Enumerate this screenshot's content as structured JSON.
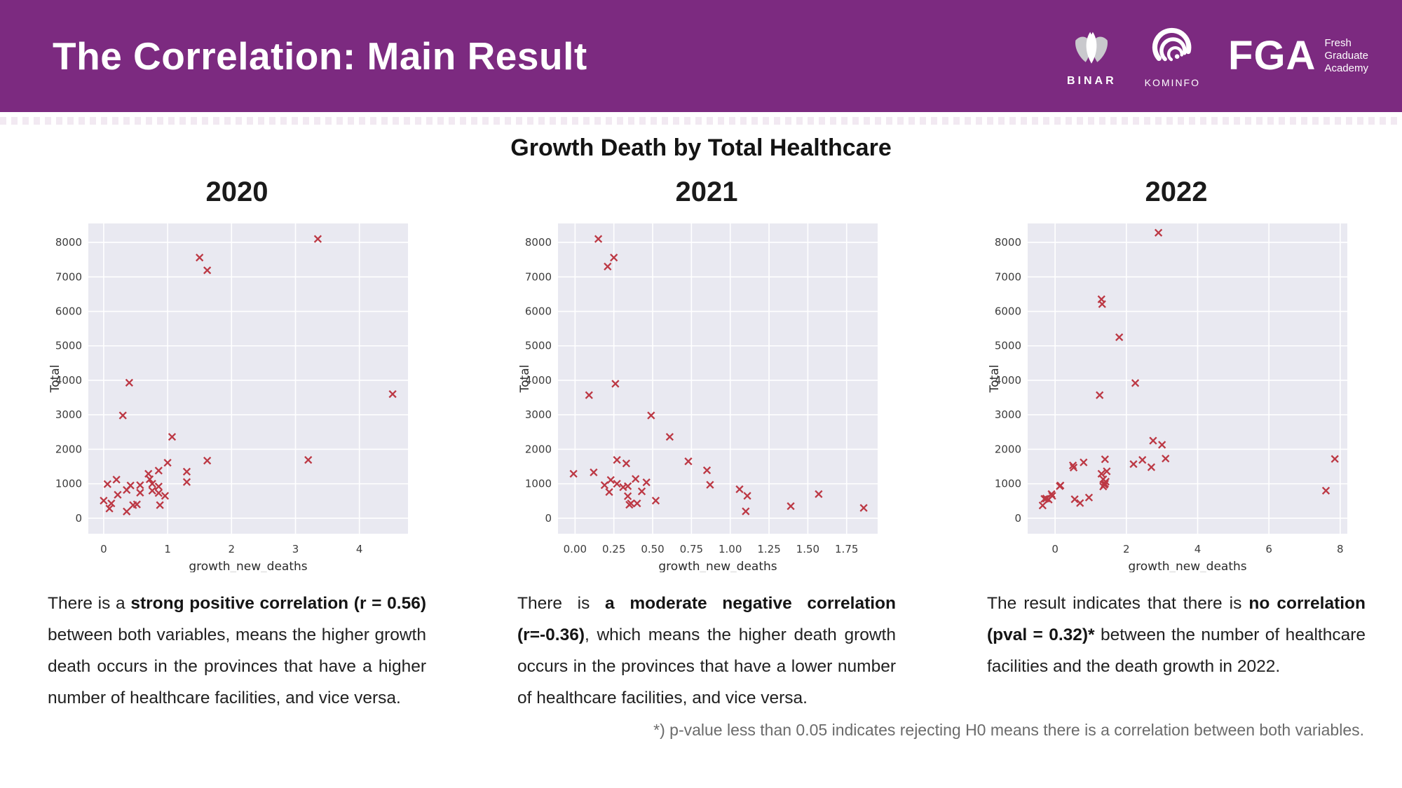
{
  "header": {
    "title": "The Correlation: Main Result",
    "logos": {
      "binar_label": "BINAR",
      "kominfo_label": "KOMINFO",
      "fga_label": "FGA",
      "fga_sub": [
        "Fresh",
        "Graduate",
        "Academy"
      ]
    }
  },
  "subtitle": "Growth Death by Total Healthcare",
  "colors": {
    "header_purple": "#7c2a80",
    "chart_background": "#e9e9f1",
    "grid": "#ffffff",
    "marker_red": "#bc3844",
    "tick_text": "#3d3d3d",
    "footnote_gray": "#6b6b6b"
  },
  "panels": [
    {
      "year": "2020",
      "description": [
        {
          "text": "There is a ",
          "bold": false
        },
        {
          "text": "strong positive correlation (r = 0.56)",
          "bold": true
        },
        {
          "text": " between both variables, means the higher growth death occurs in the provinces that have a higher number of healthcare facilities, and vice versa.",
          "bold": false
        }
      ]
    },
    {
      "year": "2021",
      "description": [
        {
          "text": "There is ",
          "bold": false
        },
        {
          "text": "a moderate negative correlation (r=-0.36)",
          "bold": true
        },
        {
          "text": ", which means the higher death growth occurs in the provinces that have a lower number of healthcare facilities, and vice versa.",
          "bold": false
        }
      ]
    },
    {
      "year": "2022",
      "description": [
        {
          "text": "The result indicates that there is ",
          "bold": false
        },
        {
          "text": "no correlation (pval = 0.32)*",
          "bold": true
        },
        {
          "text": " between the number of healthcare facilities and the death growth in 2022.",
          "bold": false
        }
      ]
    }
  ],
  "footnote": "*) p-value less than 0.05 indicates rejecting H0 means there is a correlation between both variables.",
  "chart_data": [
    {
      "type": "scatter",
      "title": "2020",
      "xlabel": "growth_new_deaths",
      "ylabel": "Total",
      "marker": "x",
      "grid": true,
      "xlim": [
        -0.24,
        4.76
      ],
      "ylim": [
        -450,
        8550
      ],
      "xticks": [
        0,
        1,
        2,
        3,
        4
      ],
      "xtick_labels": [
        "0",
        "1",
        "2",
        "3",
        "4"
      ],
      "yticks": [
        0,
        1000,
        2000,
        3000,
        4000,
        5000,
        6000,
        7000,
        8000
      ],
      "points": [
        [
          3.35,
          8100
        ],
        [
          1.5,
          7560
        ],
        [
          1.62,
          7190
        ],
        [
          0.4,
          3930
        ],
        [
          4.52,
          3600
        ],
        [
          0.3,
          2980
        ],
        [
          1.07,
          2360
        ],
        [
          3.2,
          1690
        ],
        [
          1.62,
          1670
        ],
        [
          1.0,
          1610
        ],
        [
          0.86,
          1380
        ],
        [
          1.3,
          1350
        ],
        [
          0.7,
          1290
        ],
        [
          0.72,
          1130
        ],
        [
          0.2,
          1120
        ],
        [
          1.3,
          1050
        ],
        [
          0.76,
          1000
        ],
        [
          0.06,
          990
        ],
        [
          0.57,
          960
        ],
        [
          0.42,
          950
        ],
        [
          0.86,
          920
        ],
        [
          0.36,
          820
        ],
        [
          0.76,
          800
        ],
        [
          0.57,
          740
        ],
        [
          0.86,
          730
        ],
        [
          0.22,
          680
        ],
        [
          0.96,
          650
        ],
        [
          0.0,
          510
        ],
        [
          0.12,
          430
        ],
        [
          0.52,
          400
        ],
        [
          0.46,
          380
        ],
        [
          0.88,
          380
        ],
        [
          0.09,
          280
        ],
        [
          0.36,
          195
        ]
      ]
    },
    {
      "type": "scatter",
      "title": "2021",
      "xlabel": "growth_new_deaths",
      "ylabel": "Total",
      "marker": "x",
      "grid": true,
      "xlim": [
        -0.11,
        1.95
      ],
      "ylim": [
        -450,
        8550
      ],
      "xticks": [
        0,
        0.25,
        0.5,
        0.75,
        1.0,
        1.25,
        1.5,
        1.75
      ],
      "xtick_labels": [
        "0.00",
        "0.25",
        "0.50",
        "0.75",
        "1.00",
        "1.25",
        "1.50",
        "1.75"
      ],
      "yticks": [
        0,
        1000,
        2000,
        3000,
        4000,
        5000,
        6000,
        7000,
        8000
      ],
      "points": [
        [
          0.15,
          8100
        ],
        [
          0.25,
          7560
        ],
        [
          0.21,
          7300
        ],
        [
          0.26,
          3900
        ],
        [
          0.09,
          3570
        ],
        [
          0.49,
          2980
        ],
        [
          0.61,
          2360
        ],
        [
          0.27,
          1690
        ],
        [
          0.73,
          1650
        ],
        [
          0.33,
          1590
        ],
        [
          0.85,
          1390
        ],
        [
          0.12,
          1330
        ],
        [
          -0.01,
          1290
        ],
        [
          0.39,
          1140
        ],
        [
          0.23,
          1110
        ],
        [
          0.46,
          1040
        ],
        [
          0.27,
          1000
        ],
        [
          0.87,
          970
        ],
        [
          0.19,
          960
        ],
        [
          0.34,
          930
        ],
        [
          0.31,
          900
        ],
        [
          1.06,
          840
        ],
        [
          0.43,
          780
        ],
        [
          0.22,
          760
        ],
        [
          1.57,
          700
        ],
        [
          1.11,
          650
        ],
        [
          0.34,
          640
        ],
        [
          0.52,
          510
        ],
        [
          0.36,
          430
        ],
        [
          0.4,
          430
        ],
        [
          0.35,
          390
        ],
        [
          1.39,
          350
        ],
        [
          1.86,
          300
        ],
        [
          1.1,
          200
        ]
      ]
    },
    {
      "type": "scatter",
      "title": "2022",
      "xlabel": "growth_new_deaths",
      "ylabel": "Total",
      "marker": "x",
      "grid": true,
      "xlim": [
        -0.77,
        8.2
      ],
      "ylim": [
        -450,
        8550
      ],
      "xticks": [
        0,
        2,
        4,
        6,
        8
      ],
      "xtick_labels": [
        "0",
        "2",
        "4",
        "6",
        "8"
      ],
      "yticks": [
        0,
        1000,
        2000,
        3000,
        4000,
        5000,
        6000,
        7000,
        8000
      ],
      "points": [
        [
          2.9,
          8280
        ],
        [
          1.3,
          6350
        ],
        [
          1.32,
          6210
        ],
        [
          1.8,
          5250
        ],
        [
          2.25,
          3920
        ],
        [
          1.25,
          3570
        ],
        [
          2.75,
          2250
        ],
        [
          3.0,
          2130
        ],
        [
          3.1,
          1730
        ],
        [
          7.85,
          1720
        ],
        [
          1.4,
          1710
        ],
        [
          2.45,
          1690
        ],
        [
          0.8,
          1620
        ],
        [
          2.2,
          1570
        ],
        [
          0.5,
          1530
        ],
        [
          2.7,
          1480
        ],
        [
          0.52,
          1470
        ],
        [
          1.45,
          1360
        ],
        [
          1.3,
          1290
        ],
        [
          1.35,
          1130
        ],
        [
          1.42,
          1060
        ],
        [
          1.4,
          1000
        ],
        [
          1.38,
          970
        ],
        [
          0.15,
          950
        ],
        [
          0.13,
          930
        ],
        [
          1.35,
          920
        ],
        [
          7.6,
          800
        ],
        [
          -0.1,
          700
        ],
        [
          -0.08,
          650
        ],
        [
          0.95,
          600
        ],
        [
          -0.25,
          570
        ],
        [
          -0.3,
          560
        ],
        [
          0.55,
          550
        ],
        [
          -0.18,
          540
        ],
        [
          0.7,
          440
        ],
        [
          -0.35,
          370
        ]
      ]
    }
  ]
}
